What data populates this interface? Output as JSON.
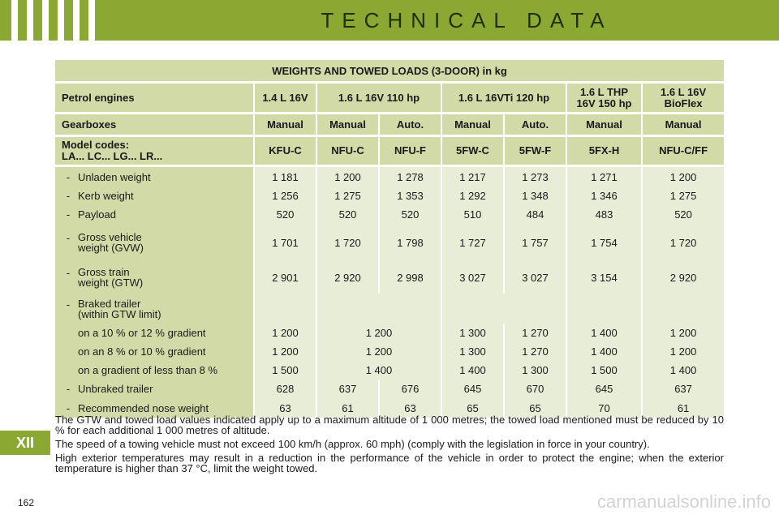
{
  "header": {
    "title": "TECHNICAL DATA"
  },
  "table": {
    "title": "WEIGHTS AND TOWED LOADS (3-DOOR) in kg",
    "engines_label": "Petrol engines",
    "engines": [
      "1.4 L 16V",
      "1.6 L 16V 110 hp",
      "1.6 L 16VTi 120 hp",
      "1.6 L THP 16V 150 hp",
      "1.6 L 16V BioFlex"
    ],
    "gearboxes_label": "Gearboxes",
    "gearboxes": [
      "Manual",
      "Manual",
      "Auto.",
      "Manual",
      "Auto.",
      "Manual",
      "Manual"
    ],
    "model_codes_label": "Model codes:",
    "model_codes_sub": "LA... LC... LG... LR...",
    "model_codes": [
      "KFU-C",
      "NFU-C",
      "NFU-F",
      "5FW-C",
      "5FW-F",
      "5FX-H",
      "NFU-C/FF"
    ],
    "rows": {
      "unladen": {
        "label": "Unladen weight",
        "values": [
          "1 181",
          "1 200",
          "1 278",
          "1 217",
          "1 273",
          "1 271",
          "1 200"
        ]
      },
      "kerb": {
        "label": "Kerb weight",
        "values": [
          "1 256",
          "1 275",
          "1 353",
          "1 292",
          "1 348",
          "1 346",
          "1 275"
        ]
      },
      "payload": {
        "label": "Payload",
        "values": [
          "520",
          "520",
          "520",
          "510",
          "484",
          "483",
          "520"
        ]
      },
      "gvw": {
        "label_1": "Gross vehicle",
        "label_2": "weight (GVW)",
        "values": [
          "1 701",
          "1 720",
          "1 798",
          "1 727",
          "1 757",
          "1 754",
          "1 720"
        ]
      },
      "gtw": {
        "label_1": "Gross train",
        "label_2": "weight (GTW)",
        "values": [
          "2 901",
          "2 920",
          "2 998",
          "3 027",
          "3 027",
          "3 154",
          "2 920"
        ]
      },
      "braked": {
        "label_1": "Braked trailer",
        "label_2": "(within GTW limit)"
      },
      "gradient_10_12": {
        "label": "on a 10 % or 12 % gradient",
        "values": [
          "1 200",
          "1 200",
          "1 300",
          "1 270",
          "1 400",
          "1 200"
        ]
      },
      "gradient_8_10": {
        "label": "on an 8 % or 10 % gradient",
        "values": [
          "1 200",
          "1 200",
          "1 300",
          "1 270",
          "1 400",
          "1 200"
        ]
      },
      "gradient_less_8": {
        "label": "on a gradient of less than 8 %",
        "values": [
          "1 500",
          "1 400",
          "1 400",
          "1 300",
          "1 500",
          "1 400"
        ]
      },
      "unbraked": {
        "label": "Unbraked trailer",
        "values": [
          "628",
          "637",
          "676",
          "645",
          "670",
          "645",
          "637"
        ]
      },
      "nose": {
        "label": "Recommended nose weight",
        "values": [
          "63",
          "61",
          "63",
          "65",
          "65",
          "70",
          "61"
        ]
      }
    }
  },
  "notes": [
    "The GTW and towed load values indicated apply up to a maximum altitude of 1 000 metres; the towed load mentioned must be reduced by 10 % for each additional 1 000 metres of altitude.",
    "The speed of a towing vehicle must not exceed 100 km/h (approx. 60 mph) (comply with the legislation in force in your country).",
    "High exterior temperatures may result in a reduction in the performance of the vehicle in order to protect the engine; when the exterior temperature is higher than 37 °C, limit the weight towed."
  ],
  "section_tab": "XII",
  "page_number": "162",
  "watermark": "carmanualsonline.info",
  "colors": {
    "accent": "#8aa832",
    "header_cell": "#d2dba8",
    "body_cell": "#e7edd6"
  }
}
